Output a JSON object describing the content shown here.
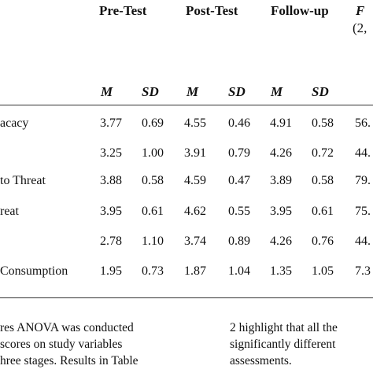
{
  "table": {
    "headers": {
      "pretest": "Pre-Test",
      "posttest": "Post-Test",
      "followup": "Follow-up",
      "f": "F",
      "df": "(2,"
    },
    "subheaders": [
      "M",
      "SD",
      "M",
      "SD",
      "M",
      "SD"
    ],
    "rows": [
      {
        "label": "acacy",
        "values": [
          "3.77",
          "0.69",
          "4.55",
          "0.46",
          "4.91",
          "0.58",
          "56."
        ]
      },
      {
        "label": "",
        "values": [
          "3.25",
          "1.00",
          "3.91",
          "0.79",
          "4.26",
          "0.72",
          "44."
        ]
      },
      {
        "label": "to Threat",
        "values": [
          "3.88",
          "0.58",
          "4.59",
          "0.47",
          "3.89",
          "0.58",
          "79."
        ]
      },
      {
        "label": "reat",
        "values": [
          "3.95",
          "0.61",
          "4.62",
          "0.55",
          "3.95",
          "0.61",
          "75."
        ]
      },
      {
        "label": "",
        "values": [
          "2.78",
          "1.10",
          "3.74",
          "0.89",
          "4.26",
          "0.76",
          "44."
        ]
      },
      {
        "label": "Consumption",
        "values": [
          "1.95",
          "0.73",
          "1.87",
          "1.04",
          "1.35",
          "1.05",
          "7.3"
        ]
      }
    ]
  },
  "notes": {
    "left": [
      "res ANOVA was conducted",
      "scores on study variables",
      "hree stages. Results in Table"
    ],
    "right": [
      "2 highlight that all the",
      "significantly different",
      "assessments."
    ]
  }
}
